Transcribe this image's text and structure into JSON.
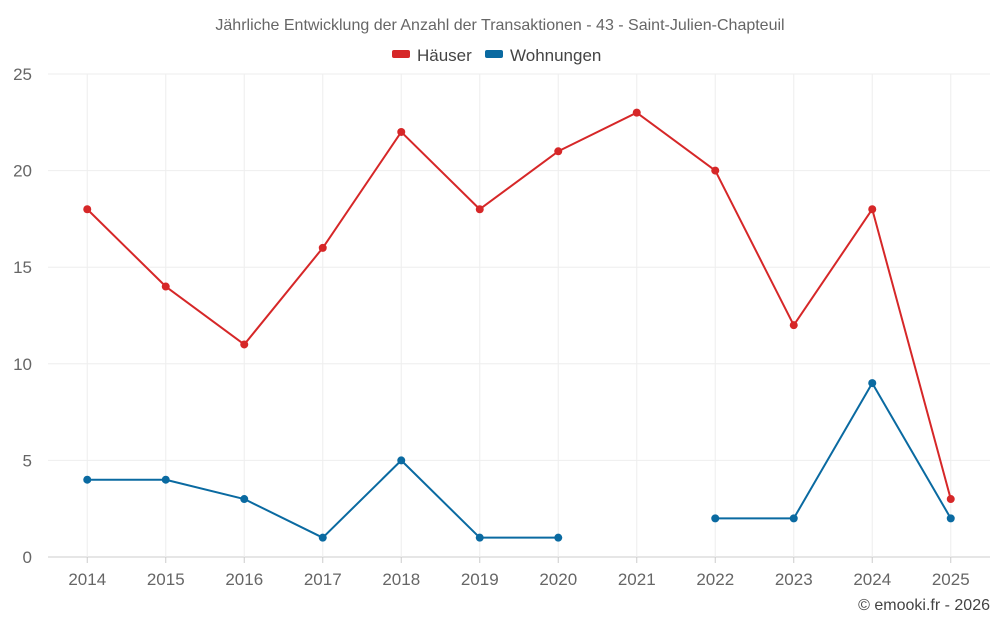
{
  "chart_data": {
    "type": "line",
    "title": "Jährliche Entwicklung der Anzahl der Transaktionen - 43 - Saint-Julien-Chapteuil",
    "categories": [
      "2014",
      "2015",
      "2016",
      "2017",
      "2018",
      "2019",
      "2020",
      "2021",
      "2022",
      "2023",
      "2024",
      "2025"
    ],
    "series": [
      {
        "name": "Häuser",
        "color": "#d62728",
        "values": [
          18,
          14,
          11,
          16,
          22,
          18,
          21,
          23,
          20,
          12,
          18,
          3
        ]
      },
      {
        "name": "Wohnungen",
        "color": "#0a6aa1",
        "values": [
          4,
          4,
          3,
          1,
          5,
          1,
          1,
          null,
          2,
          2,
          9,
          2
        ]
      }
    ],
    "ylim": [
      0,
      25
    ],
    "yticks": [
      "0",
      "5",
      "10",
      "15",
      "20",
      "25"
    ],
    "grid": true,
    "legend_position": "top-center",
    "xlabel": "",
    "ylabel": ""
  },
  "credit": "© emooki.fr - 2026"
}
